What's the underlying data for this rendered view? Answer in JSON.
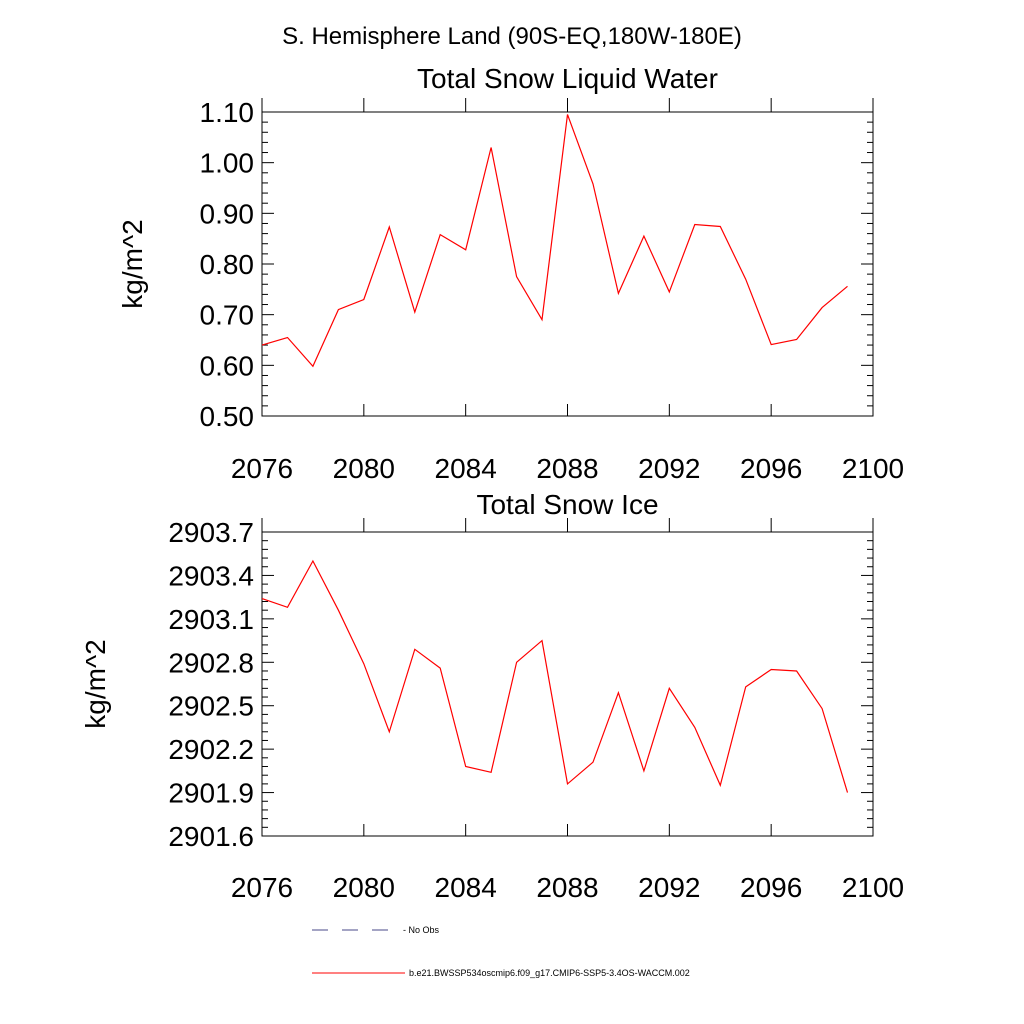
{
  "page": {
    "title": "S. Hemisphere Land (90S-EQ,180W-180E)"
  },
  "colors": {
    "series": "#ff0000",
    "noobs": "#4a4a8a",
    "axis": "#000000"
  },
  "legend": {
    "noobs_label": "- No Obs",
    "series_label": "b.e21.BWSSP534oscmip6.f09_g17.CMIP6-SSP5-3.4OS-WACCM.002"
  },
  "chart_data": [
    {
      "type": "line",
      "title": "Total Snow Liquid Water",
      "xlabel": "",
      "ylabel": "kg/m^2",
      "xlim": [
        2076,
        2100
      ],
      "ylim": [
        0.5,
        1.1
      ],
      "xticks": [
        "2076",
        "2080",
        "2084",
        "2088",
        "2092",
        "2096",
        "2100"
      ],
      "yticks": [
        "0.50",
        "0.60",
        "0.70",
        "0.80",
        "0.90",
        "1.00",
        "1.10"
      ],
      "series": [
        {
          "name": "b.e21.BWSSP534oscmip6.f09_g17.CMIP6-SSP5-3.4OS-WACCM.002",
          "x": [
            2076,
            2077,
            2078,
            2079,
            2080,
            2081,
            2082,
            2083,
            2084,
            2085,
            2086,
            2087,
            2088,
            2089,
            2090,
            2091,
            2092,
            2093,
            2094,
            2095,
            2096,
            2097,
            2098,
            2099
          ],
          "values": [
            0.64,
            0.655,
            0.598,
            0.71,
            0.73,
            0.873,
            0.705,
            0.858,
            0.828,
            1.03,
            0.775,
            0.69,
            1.095,
            0.958,
            0.742,
            0.855,
            0.745,
            0.878,
            0.874,
            0.77,
            0.641,
            0.651,
            0.714,
            0.756
          ]
        }
      ]
    },
    {
      "type": "line",
      "title": "Total Snow Ice",
      "xlabel": "",
      "ylabel": "kg/m^2",
      "xlim": [
        2076,
        2100
      ],
      "ylim": [
        2901.6,
        2903.7
      ],
      "xticks": [
        "2076",
        "2080",
        "2084",
        "2088",
        "2092",
        "2096",
        "2100"
      ],
      "yticks": [
        "2901.6",
        "2901.9",
        "2902.2",
        "2902.5",
        "2902.8",
        "2903.1",
        "2903.4",
        "2903.7"
      ],
      "series": [
        {
          "name": "b.e21.BWSSP534oscmip6.f09_g17.CMIP6-SSP5-3.4OS-WACCM.002",
          "x": [
            2076,
            2077,
            2078,
            2079,
            2080,
            2081,
            2082,
            2083,
            2084,
            2085,
            2086,
            2087,
            2088,
            2089,
            2090,
            2091,
            2092,
            2093,
            2094,
            2095,
            2096,
            2097,
            2098,
            2099
          ],
          "values": [
            2903.24,
            2903.18,
            2903.5,
            2903.16,
            2902.79,
            2902.32,
            2902.89,
            2902.76,
            2902.08,
            2902.04,
            2902.8,
            2902.95,
            2901.96,
            2902.11,
            2902.59,
            2902.05,
            2902.62,
            2902.35,
            2901.95,
            2902.63,
            2902.75,
            2902.74,
            2902.48,
            2901.9
          ]
        }
      ]
    }
  ]
}
